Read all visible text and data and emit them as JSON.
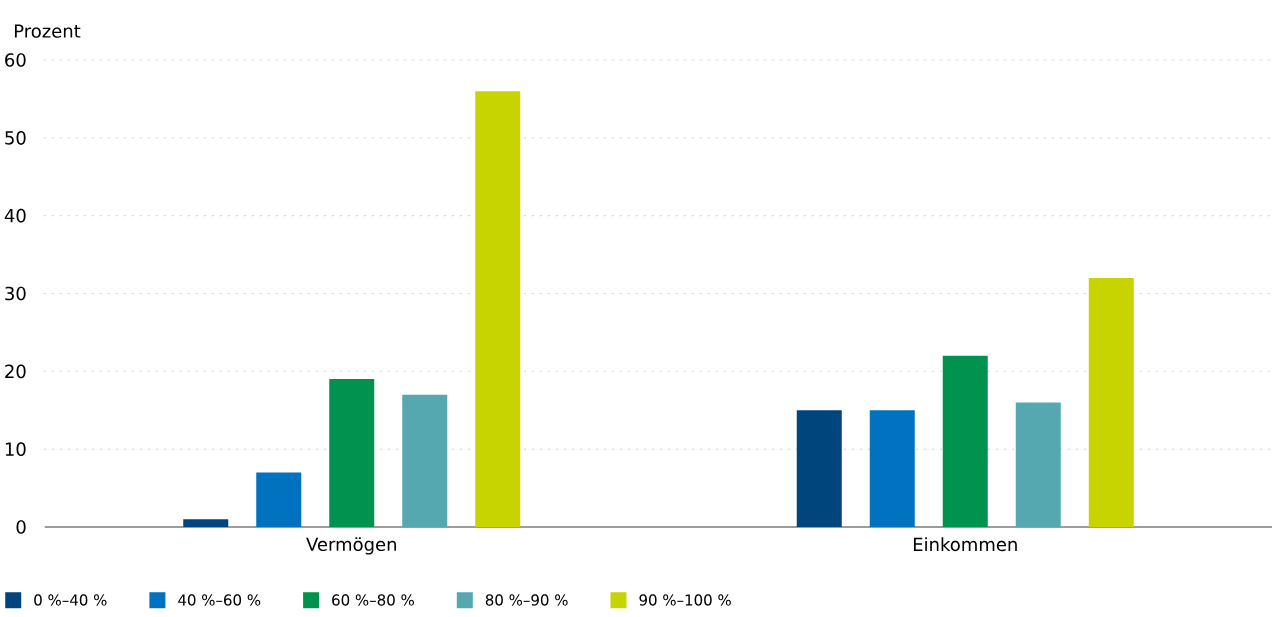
{
  "chart_data": {
    "type": "bar",
    "ylabel": "Prozent",
    "categories": [
      "Vermögen",
      "Einkommen"
    ],
    "series": [
      {
        "name": "0 %–40 %",
        "color": "#00457c",
        "values": [
          1,
          15
        ]
      },
      {
        "name": "40 %–60 %",
        "color": "#0072bf",
        "values": [
          7,
          15
        ]
      },
      {
        "name": "60 %–80 %",
        "color": "#00934f",
        "values": [
          19,
          22
        ]
      },
      {
        "name": "80 %–90 %",
        "color": "#55a8b0",
        "values": [
          17,
          16
        ]
      },
      {
        "name": "90 %–100 %",
        "color": "#c8d400",
        "values": [
          56,
          32
        ]
      }
    ],
    "ylim": [
      0,
      60
    ],
    "yticks": [
      0,
      10,
      20,
      30,
      40,
      50,
      60
    ],
    "grid": "y",
    "legend": "bottom"
  }
}
